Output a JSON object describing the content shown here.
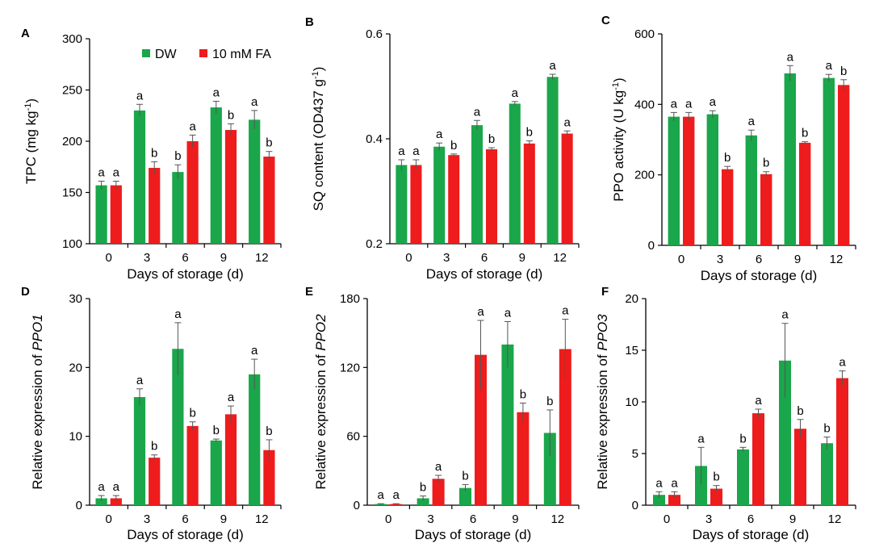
{
  "colors": {
    "dw": "#1aa64a",
    "fa": "#ee1c1c",
    "errorbar": "#555555",
    "axis": "#000000"
  },
  "legend": {
    "dw_label": "DW",
    "fa_label": "10 mM FA"
  },
  "chart_data": [
    {
      "panel": "A",
      "type": "bar",
      "categories": [
        "0",
        "3",
        "6",
        "9",
        "12"
      ],
      "xlabel": "Days of storage (d)",
      "ylabel": {
        "main": "TPC (mg kg",
        "sup": "-1",
        "tail": ")"
      },
      "ylim": [
        100,
        300
      ],
      "yticks": [
        100,
        150,
        200,
        250,
        300
      ],
      "series": [
        {
          "name": "DW",
          "values": [
            157,
            230,
            170,
            233,
            221
          ],
          "errors": [
            4,
            6,
            7,
            6,
            9
          ],
          "letters": [
            "a",
            "a",
            "b",
            "a",
            "a"
          ]
        },
        {
          "name": "10 mM FA",
          "values": [
            157,
            174,
            200,
            211,
            185
          ],
          "errors": [
            4,
            6,
            6,
            6,
            5
          ],
          "letters": [
            "a",
            "b",
            "a",
            "b",
            "b"
          ]
        }
      ],
      "legend_position": "top"
    },
    {
      "panel": "B",
      "type": "bar",
      "categories": [
        "0",
        "3",
        "6",
        "9",
        "12"
      ],
      "xlabel": "Days of storage (d)",
      "ylabel": {
        "main": "SQ content (OD437 g",
        "sup": "-1",
        "tail": ")"
      },
      "ylim": [
        0.2,
        0.6
      ],
      "yticks": [
        0.2,
        0.4,
        0.6
      ],
      "series": [
        {
          "name": "DW",
          "values": [
            0.35,
            0.385,
            0.426,
            0.467,
            0.518
          ],
          "errors": [
            0.01,
            0.007,
            0.009,
            0.004,
            0.005
          ],
          "letters": [
            "a",
            "a",
            "a",
            "a",
            "a"
          ]
        },
        {
          "name": "10 mM FA",
          "values": [
            0.35,
            0.369,
            0.38,
            0.391,
            0.41
          ],
          "errors": [
            0.01,
            0.002,
            0.003,
            0.005,
            0.005
          ],
          "letters": [
            "a",
            "b",
            "b",
            "b",
            "a"
          ]
        }
      ]
    },
    {
      "panel": "C",
      "type": "bar",
      "categories": [
        "0",
        "3",
        "6",
        "9",
        "12"
      ],
      "xlabel": "Days of storage (d)",
      "ylabel": {
        "main": "PPO activity (U kg",
        "sup": "-1",
        "tail": ")"
      },
      "ylim": [
        0,
        600
      ],
      "yticks": [
        0,
        200,
        400,
        600
      ],
      "series": [
        {
          "name": "DW",
          "values": [
            365,
            372,
            312,
            488,
            475
          ],
          "errors": [
            12,
            10,
            15,
            22,
            10
          ],
          "letters": [
            "a",
            "a",
            "a",
            "a",
            "a"
          ]
        },
        {
          "name": "10 mM FA",
          "values": [
            365,
            216,
            202,
            291,
            455
          ],
          "errors": [
            12,
            8,
            7,
            3,
            15
          ],
          "letters": [
            "a",
            "b",
            "b",
            "b",
            "b"
          ]
        }
      ]
    },
    {
      "panel": "D",
      "type": "bar",
      "categories": [
        "0",
        "3",
        "6",
        "9",
        "12"
      ],
      "xlabel": "Days of storage (d)",
      "ylabel": {
        "main": "Relative expression of ",
        "gene": "PPO1"
      },
      "ylim": [
        0,
        30
      ],
      "yticks": [
        0,
        10,
        20,
        30
      ],
      "series": [
        {
          "name": "DW",
          "values": [
            1.0,
            15.7,
            22.7,
            9.4,
            19.0
          ],
          "errors": [
            0.4,
            1.2,
            3.8,
            0.2,
            2.2
          ],
          "letters": [
            "a",
            "a",
            "a",
            "b",
            "a"
          ]
        },
        {
          "name": "10 mM FA",
          "values": [
            1.0,
            6.9,
            11.5,
            13.2,
            8.0
          ],
          "errors": [
            0.4,
            0.4,
            0.6,
            1.2,
            1.5
          ],
          "letters": [
            "a",
            "b",
            "b",
            "a",
            "b"
          ]
        }
      ]
    },
    {
      "panel": "E",
      "type": "bar",
      "categories": [
        "0",
        "3",
        "6",
        "9",
        "12"
      ],
      "xlabel": "Days of storage (d)",
      "ylabel": {
        "main": "Relative expression of ",
        "gene": "PPO2"
      },
      "ylim": [
        0,
        180
      ],
      "yticks": [
        0,
        60,
        120,
        180
      ],
      "series": [
        {
          "name": "DW",
          "values": [
            1.0,
            6,
            15,
            140,
            63
          ],
          "errors": [
            0.3,
            2,
            3,
            20,
            20
          ],
          "letters": [
            "a",
            "b",
            "b",
            "a",
            "b"
          ]
        },
        {
          "name": "10 mM FA",
          "values": [
            1.0,
            23,
            131,
            81,
            136
          ],
          "errors": [
            0.3,
            3,
            30,
            8,
            26
          ],
          "letters": [
            "a",
            "a",
            "a",
            "b",
            "a"
          ]
        }
      ]
    },
    {
      "panel": "F",
      "type": "bar",
      "categories": [
        "0",
        "3",
        "6",
        "9",
        "12"
      ],
      "xlabel": "Days of storage (d)",
      "ylabel": {
        "main": "Relative expression of ",
        "gene": "PPO3"
      },
      "ylim": [
        0,
        20
      ],
      "yticks": [
        0,
        5,
        10,
        15,
        20
      ],
      "series": [
        {
          "name": "DW",
          "values": [
            1.0,
            3.8,
            5.4,
            14.0,
            6.0
          ],
          "errors": [
            0.3,
            1.8,
            0.2,
            3.6,
            0.6
          ],
          "letters": [
            "a",
            "a",
            "b",
            "a",
            "b"
          ]
        },
        {
          "name": "10 mM FA",
          "values": [
            1.0,
            1.6,
            8.9,
            7.4,
            12.3
          ],
          "errors": [
            0.3,
            0.3,
            0.4,
            0.9,
            0.7
          ],
          "letters": [
            "a",
            "b",
            "a",
            "b",
            "a"
          ]
        }
      ]
    }
  ]
}
